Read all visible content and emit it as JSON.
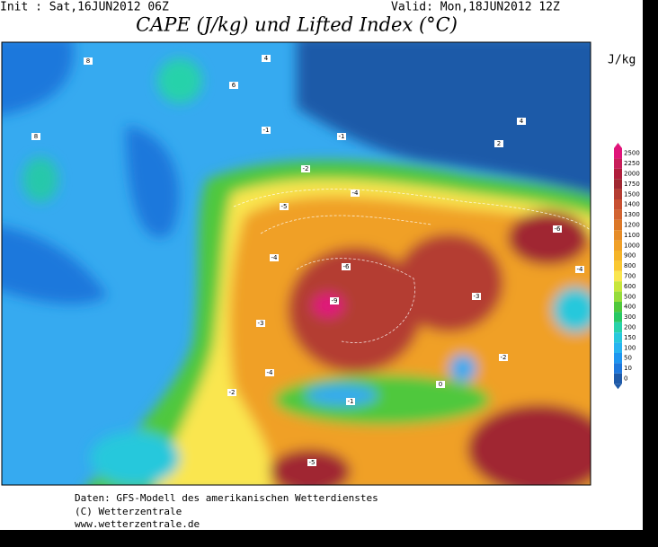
{
  "header": {
    "init": "Init : Sat,16JUN2012 06Z",
    "valid": "Valid: Mon,18JUN2012 12Z"
  },
  "title": "CAPE (J/kg) und Lifted Index (°C)",
  "unit": "J/kg",
  "colorbar": {
    "ticks": [
      2500,
      2250,
      2000,
      1750,
      1500,
      1400,
      1300,
      1200,
      1100,
      1000,
      900,
      800,
      700,
      600,
      500,
      400,
      300,
      200,
      150,
      100,
      50,
      10,
      0
    ],
    "colors": [
      "#e0147a",
      "#c81e5a",
      "#b01e3c",
      "#a02832",
      "#b43c32",
      "#c85032",
      "#d26432",
      "#dc7828",
      "#e68c28",
      "#f0a028",
      "#f5b428",
      "#fac832",
      "#fae650",
      "#c8e63c",
      "#96dc3c",
      "#50c83c",
      "#28c864",
      "#28d2aa",
      "#28c8dc",
      "#28b4f0",
      "#1e96f0",
      "#1e78dc",
      "#1e5aa8"
    ]
  },
  "map": {
    "labels": [
      "8",
      "6",
      "4",
      "8",
      "-1",
      "-1",
      "-2",
      "-4",
      "-5",
      "-4",
      "-6",
      "-9",
      "-3",
      "-2",
      "0",
      "-1",
      "-4",
      "-2",
      "-3",
      "-6",
      "2",
      "4",
      "-4",
      "-5"
    ]
  },
  "footer": [
    "Daten: GFS-Modell des amerikanischen Wetterdienstes",
    "(C) Wetterzentrale",
    "www.wetterzentrale.de"
  ]
}
